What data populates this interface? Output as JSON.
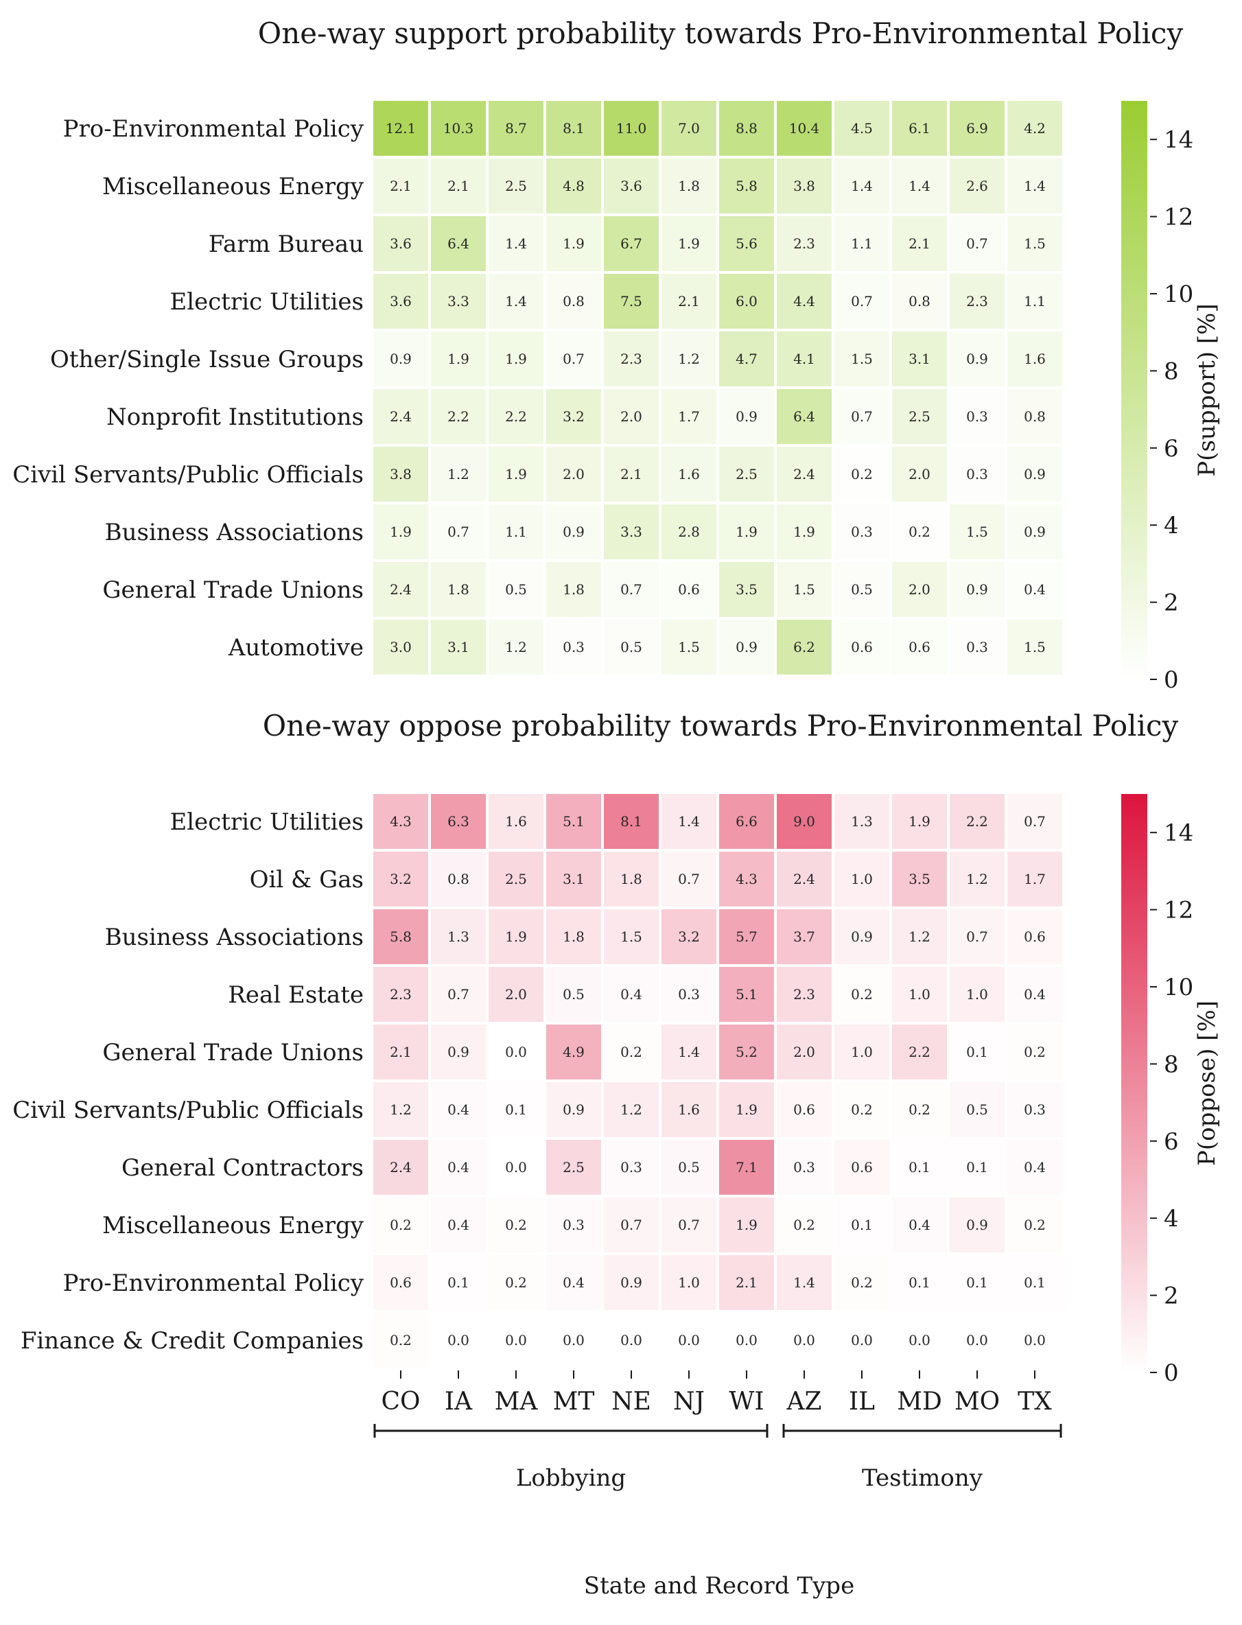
{
  "xlabel": "State and Record Type",
  "columns": [
    "CO",
    "IA",
    "MA",
    "MT",
    "NE",
    "NJ",
    "WI",
    "AZ",
    "IL",
    "MD",
    "MO",
    "TX"
  ],
  "groups": [
    {
      "label": "Lobbying",
      "start": 0,
      "end": 6
    },
    {
      "label": "Testimony",
      "start": 7,
      "end": 11
    }
  ],
  "chart_data": [
    {
      "type": "heatmap",
      "title": "One-way support probability towards Pro-Environmental Policy",
      "colorbar_label": "P(support) [%]",
      "colorbar_ticks": [
        0,
        2,
        4,
        6,
        8,
        10,
        12,
        14
      ],
      "vmin": 0,
      "vmax": 15,
      "color_low": "#ffffff",
      "color_high": "#9ACD32",
      "rows": [
        "Pro-Environmental Policy",
        "Miscellaneous Energy",
        "Farm Bureau",
        "Electric Utilities",
        "Other/Single Issue Groups",
        "Nonprofit Institutions",
        "Civil Servants/Public Officials",
        "Business Associations",
        "General Trade Unions",
        "Automotive"
      ],
      "values": [
        [
          "12.1",
          "10.3",
          "8.7",
          "8.1",
          "11.0",
          "7.0",
          "8.8",
          "10.4",
          "4.5",
          "6.1",
          "6.9",
          "4.2"
        ],
        [
          "2.1",
          "2.1",
          "2.5",
          "4.8",
          "3.6",
          "1.8",
          "5.8",
          "3.8",
          "1.4",
          "1.4",
          "2.6",
          "1.4"
        ],
        [
          "3.6",
          "6.4",
          "1.4",
          "1.9",
          "6.7",
          "1.9",
          "5.6",
          "2.3",
          "1.1",
          "2.1",
          "0.7",
          "1.5"
        ],
        [
          "3.6",
          "3.3",
          "1.4",
          "0.8",
          "7.5",
          "2.1",
          "6.0",
          "4.4",
          "0.7",
          "0.8",
          "2.3",
          "1.1"
        ],
        [
          "0.9",
          "1.9",
          "1.9",
          "0.7",
          "2.3",
          "1.2",
          "4.7",
          "4.1",
          "1.5",
          "3.1",
          "0.9",
          "1.6"
        ],
        [
          "2.4",
          "2.2",
          "2.2",
          "3.2",
          "2.0",
          "1.7",
          "0.9",
          "6.4",
          "0.7",
          "2.5",
          "0.3",
          "0.8"
        ],
        [
          "3.8",
          "1.2",
          "1.9",
          "2.0",
          "2.1",
          "1.6",
          "2.5",
          "2.4",
          "0.2",
          "2.0",
          "0.3",
          "0.9"
        ],
        [
          "1.9",
          "0.7",
          "1.1",
          "0.9",
          "3.3",
          "2.8",
          "1.9",
          "1.9",
          "0.3",
          "0.2",
          "1.5",
          "0.9"
        ],
        [
          "2.4",
          "1.8",
          "0.5",
          "1.8",
          "0.7",
          "0.6",
          "3.5",
          "1.5",
          "0.5",
          "2.0",
          "0.9",
          "0.4"
        ],
        [
          "3.0",
          "3.1",
          "1.2",
          "0.3",
          "0.5",
          "1.5",
          "0.9",
          "6.2",
          "0.6",
          "0.6",
          "0.3",
          "1.5"
        ]
      ]
    },
    {
      "type": "heatmap",
      "title": "One-way oppose probability towards Pro-Environmental Policy",
      "colorbar_label": "P(oppose) [%]",
      "colorbar_ticks": [
        0,
        2,
        4,
        6,
        8,
        10,
        12,
        14
      ],
      "vmin": 0,
      "vmax": 15,
      "color_low": "#ffffff",
      "color_high": "#DC143C",
      "rows": [
        "Electric Utilities",
        "Oil & Gas",
        "Business Associations",
        "Real Estate",
        "General Trade Unions",
        "Civil Servants/Public Officials",
        "General Contractors",
        "Miscellaneous Energy",
        "Pro-Environmental Policy",
        "Finance & Credit Companies"
      ],
      "values": [
        [
          "4.3",
          "6.3",
          "1.6",
          "5.1",
          "8.1",
          "1.4",
          "6.6",
          "9.0",
          "1.3",
          "1.9",
          "2.2",
          "0.7"
        ],
        [
          "3.2",
          "0.8",
          "2.5",
          "3.1",
          "1.8",
          "0.7",
          "4.3",
          "2.4",
          "1.0",
          "3.5",
          "1.2",
          "1.7"
        ],
        [
          "5.8",
          "1.3",
          "1.9",
          "1.8",
          "1.5",
          "3.2",
          "5.7",
          "3.7",
          "0.9",
          "1.2",
          "0.7",
          "0.6"
        ],
        [
          "2.3",
          "0.7",
          "2.0",
          "0.5",
          "0.4",
          "0.3",
          "5.1",
          "2.3",
          "0.2",
          "1.0",
          "1.0",
          "0.4"
        ],
        [
          "2.1",
          "0.9",
          "0.0",
          "4.9",
          "0.2",
          "1.4",
          "5.2",
          "2.0",
          "1.0",
          "2.2",
          "0.1",
          "0.2"
        ],
        [
          "1.2",
          "0.4",
          "0.1",
          "0.9",
          "1.2",
          "1.6",
          "1.9",
          "0.6",
          "0.2",
          "0.2",
          "0.5",
          "0.3"
        ],
        [
          "2.4",
          "0.4",
          "0.0",
          "2.5",
          "0.3",
          "0.5",
          "7.1",
          "0.3",
          "0.6",
          "0.1",
          "0.1",
          "0.4"
        ],
        [
          "0.2",
          "0.4",
          "0.2",
          "0.3",
          "0.7",
          "0.7",
          "1.9",
          "0.2",
          "0.1",
          "0.4",
          "0.9",
          "0.2"
        ],
        [
          "0.6",
          "0.1",
          "0.2",
          "0.4",
          "0.9",
          "1.0",
          "2.1",
          "1.4",
          "0.2",
          "0.1",
          "0.1",
          "0.1"
        ],
        [
          "0.2",
          "0.0",
          "0.0",
          "0.0",
          "0.0",
          "0.0",
          "0.0",
          "0.0",
          "0.0",
          "0.0",
          "0.0",
          "0.0"
        ]
      ]
    }
  ]
}
